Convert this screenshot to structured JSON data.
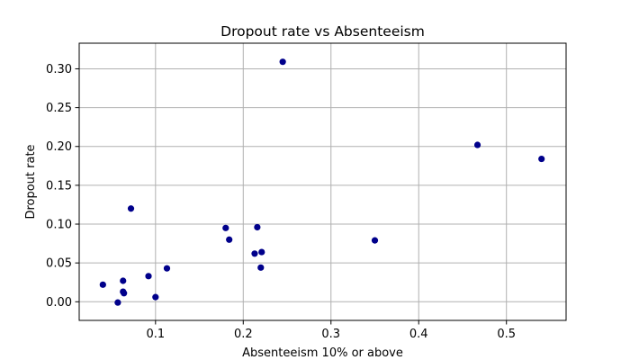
{
  "chart_data": {
    "type": "scatter",
    "title": "Dropout rate vs Absenteeism",
    "xlabel": "Absenteeism 10% or above",
    "ylabel": "Dropout rate",
    "xlim": [
      0.013,
      0.568
    ],
    "ylim": [
      -0.024,
      0.333
    ],
    "xticks": [
      {
        "value": 0.1,
        "label": "0.1"
      },
      {
        "value": 0.2,
        "label": "0.2"
      },
      {
        "value": 0.3,
        "label": "0.3"
      },
      {
        "value": 0.4,
        "label": "0.4"
      },
      {
        "value": 0.5,
        "label": "0.5"
      }
    ],
    "yticks": [
      {
        "value": 0.0,
        "label": "0.00"
      },
      {
        "value": 0.05,
        "label": "0.05"
      },
      {
        "value": 0.1,
        "label": "0.10"
      },
      {
        "value": 0.15,
        "label": "0.15"
      },
      {
        "value": 0.2,
        "label": "0.20"
      },
      {
        "value": 0.25,
        "label": "0.25"
      },
      {
        "value": 0.3,
        "label": "0.30"
      }
    ],
    "grid": true,
    "legend": "none",
    "marker_color": "#00008b",
    "points": [
      {
        "x": 0.04,
        "y": 0.022
      },
      {
        "x": 0.057,
        "y": -0.001
      },
      {
        "x": 0.063,
        "y": 0.027
      },
      {
        "x": 0.063,
        "y": 0.013
      },
      {
        "x": 0.064,
        "y": 0.011
      },
      {
        "x": 0.072,
        "y": 0.12
      },
      {
        "x": 0.092,
        "y": 0.033
      },
      {
        "x": 0.1,
        "y": 0.006
      },
      {
        "x": 0.113,
        "y": 0.043
      },
      {
        "x": 0.18,
        "y": 0.095
      },
      {
        "x": 0.184,
        "y": 0.08
      },
      {
        "x": 0.213,
        "y": 0.062
      },
      {
        "x": 0.216,
        "y": 0.096
      },
      {
        "x": 0.22,
        "y": 0.044
      },
      {
        "x": 0.221,
        "y": 0.064
      },
      {
        "x": 0.245,
        "y": 0.309
      },
      {
        "x": 0.35,
        "y": 0.079
      },
      {
        "x": 0.467,
        "y": 0.202
      },
      {
        "x": 0.54,
        "y": 0.184
      }
    ]
  }
}
